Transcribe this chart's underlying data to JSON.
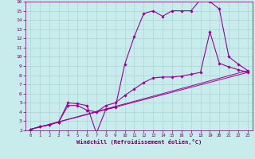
{
  "xlabel": "Windchill (Refroidissement éolien,°C)",
  "background_color": "#c8ecec",
  "grid_color": "#aad4d4",
  "line_color": "#990099",
  "xlim": [
    -0.5,
    23.5
  ],
  "ylim": [
    2,
    16
  ],
  "xticks": [
    0,
    1,
    2,
    3,
    4,
    5,
    6,
    7,
    8,
    9,
    10,
    11,
    12,
    13,
    14,
    15,
    16,
    17,
    18,
    19,
    20,
    21,
    22,
    23
  ],
  "yticks": [
    2,
    3,
    4,
    5,
    6,
    7,
    8,
    9,
    10,
    11,
    12,
    13,
    14,
    15,
    16
  ],
  "series_with_markers": [
    {
      "x": [
        0,
        1,
        2,
        3,
        4,
        5,
        6,
        7,
        8,
        9,
        10,
        11,
        12,
        13,
        14,
        15,
        16,
        17,
        18,
        19,
        20,
        21,
        22,
        23
      ],
      "y": [
        2.1,
        2.4,
        2.6,
        2.9,
        5.0,
        4.9,
        4.7,
        1.7,
        4.3,
        4.5,
        9.2,
        12.2,
        14.7,
        15.0,
        14.4,
        15.0,
        15.0,
        15.0,
        16.2,
        16.0,
        15.2,
        10.0,
        9.2,
        8.5
      ]
    },
    {
      "x": [
        0,
        1,
        2,
        3,
        4,
        5,
        6,
        7,
        8,
        9,
        10,
        11,
        12,
        13,
        14,
        15,
        16,
        17,
        18,
        19,
        20,
        21,
        22,
        23
      ],
      "y": [
        2.1,
        2.4,
        2.6,
        2.9,
        4.7,
        4.7,
        4.2,
        4.0,
        4.7,
        5.0,
        5.8,
        6.5,
        7.2,
        7.7,
        7.8,
        7.8,
        7.9,
        8.1,
        8.3,
        12.7,
        9.3,
        8.9,
        8.6,
        8.3
      ]
    }
  ],
  "series_plain": [
    {
      "x": [
        0,
        23
      ],
      "y": [
        2.1,
        8.5
      ]
    },
    {
      "x": [
        0,
        23
      ],
      "y": [
        2.1,
        8.3
      ]
    }
  ]
}
